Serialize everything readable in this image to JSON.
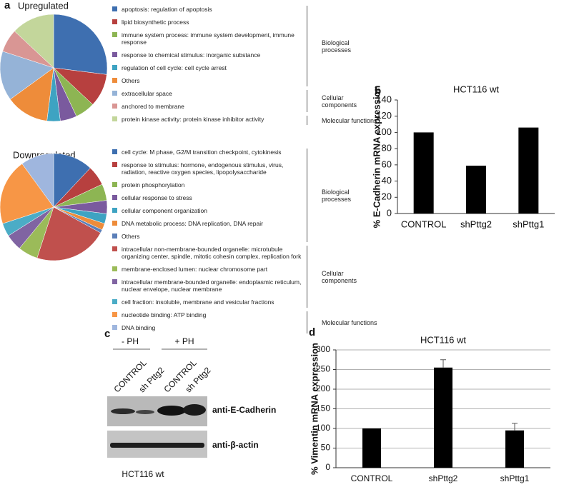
{
  "chart_data": [
    {
      "type": "pie",
      "panel": "a",
      "title": "Upregulated",
      "groups": [
        {
          "label": "Biological processes",
          "categories": [
            "apoptosis: regulation of apoptosis",
            "lipid biosynthetic process",
            "immune system process: immune system development, immune response",
            "response to chemical stimulus: inorganic substance",
            "regulation of cell cycle: cell cycle arrest",
            "Others"
          ],
          "values": [
            27,
            10,
            6,
            5,
            4,
            13
          ],
          "colors": [
            "#3e6fb0",
            "#b7403f",
            "#8db553",
            "#7a5a9e",
            "#3ea3c2",
            "#ee8c3a"
          ]
        },
        {
          "label": "Cellular components",
          "categories": [
            "extracellular space",
            "anchored to membrane"
          ],
          "values": [
            15,
            7
          ],
          "colors": [
            "#95b3d7",
            "#d99694"
          ]
        },
        {
          "label": "Molecular functions",
          "categories": [
            "protein kinase activity: protein kinase inhibitor activity"
          ],
          "values": [
            13
          ],
          "colors": [
            "#c3d69b"
          ]
        }
      ]
    },
    {
      "type": "pie",
      "title": "Downregulated",
      "groups": [
        {
          "label": "Biological processes",
          "categories": [
            "cell cycle: M phase, G2/M transition checkpoint, cytokinesis",
            "response to stimulus: hormone, endogenous stimulus, virus, radiation, reactive oxygen species, lipopolysaccharide",
            "protein phosphorylation",
            "cellular response to stress",
            "cellular component organization",
            "DNA metabolic process: DNA replication, DNA repair",
            "Others"
          ],
          "values": [
            12,
            6,
            5,
            4,
            3,
            2,
            1
          ],
          "colors": [
            "#3e6fb0",
            "#b7403f",
            "#8db553",
            "#7a5a9e",
            "#3ea3c2",
            "#ee8c3a",
            "#5b7fb8"
          ]
        },
        {
          "label": "Cellular components",
          "categories": [
            "intracellular non-membrane-bounded organelle: microtubule organizing center, spindle, mitotic cohesin complex, replication fork",
            "membrane-enclosed lumen: nuclear chromosome part",
            "intracellular membrane-bounded organelle: endoplasmic reticulum, nuclear envelope, nuclear membrane",
            "cell fraction: insoluble, membrane and vesicular fractions"
          ],
          "values": [
            22,
            6,
            5,
            4
          ],
          "colors": [
            "#c0504d",
            "#9bbb59",
            "#8064a2",
            "#4bacc6"
          ]
        },
        {
          "label": "Molecular functions",
          "categories": [
            "nucleotide binding: ATP binding",
            "DNA binding"
          ],
          "values": [
            20,
            10
          ],
          "colors": [
            "#f79646",
            "#9fb6de"
          ]
        }
      ]
    },
    {
      "type": "bar",
      "panel": "b",
      "title": "HCT116 wt",
      "y_label": "% E-Cadherin mRNA expression",
      "categories": [
        "CONTROL",
        "shPttg2",
        "shPttg1"
      ],
      "values": [
        100,
        59,
        106
      ],
      "color": "#000000",
      "ylim": [
        0,
        140
      ],
      "yticks": [
        0,
        20,
        40,
        60,
        80,
        100,
        120,
        140
      ],
      "grid": false
    },
    {
      "type": "bar",
      "panel": "d",
      "title": "HCT116 wt",
      "y_label": "% Vimentin mRNA expression",
      "categories": [
        "CONTROL",
        "shPttg2",
        "shPttg1"
      ],
      "values": [
        100,
        255,
        95
      ],
      "errors": [
        null,
        20,
        18
      ],
      "color": "#000000",
      "ylim": [
        0,
        300
      ],
      "yticks": [
        0,
        50,
        100,
        150,
        200,
        250,
        300
      ],
      "grid": true
    }
  ],
  "blot": {
    "panel": "c",
    "groups": [
      "- PH",
      "+ PH"
    ],
    "lanes": [
      "CONTROL",
      "sh Pttg2",
      "CONTROL",
      "sh Pttg2"
    ],
    "bands": [
      "anti-E-Cadherin",
      "anti-β-actin"
    ],
    "caption": "HCT116 wt"
  }
}
